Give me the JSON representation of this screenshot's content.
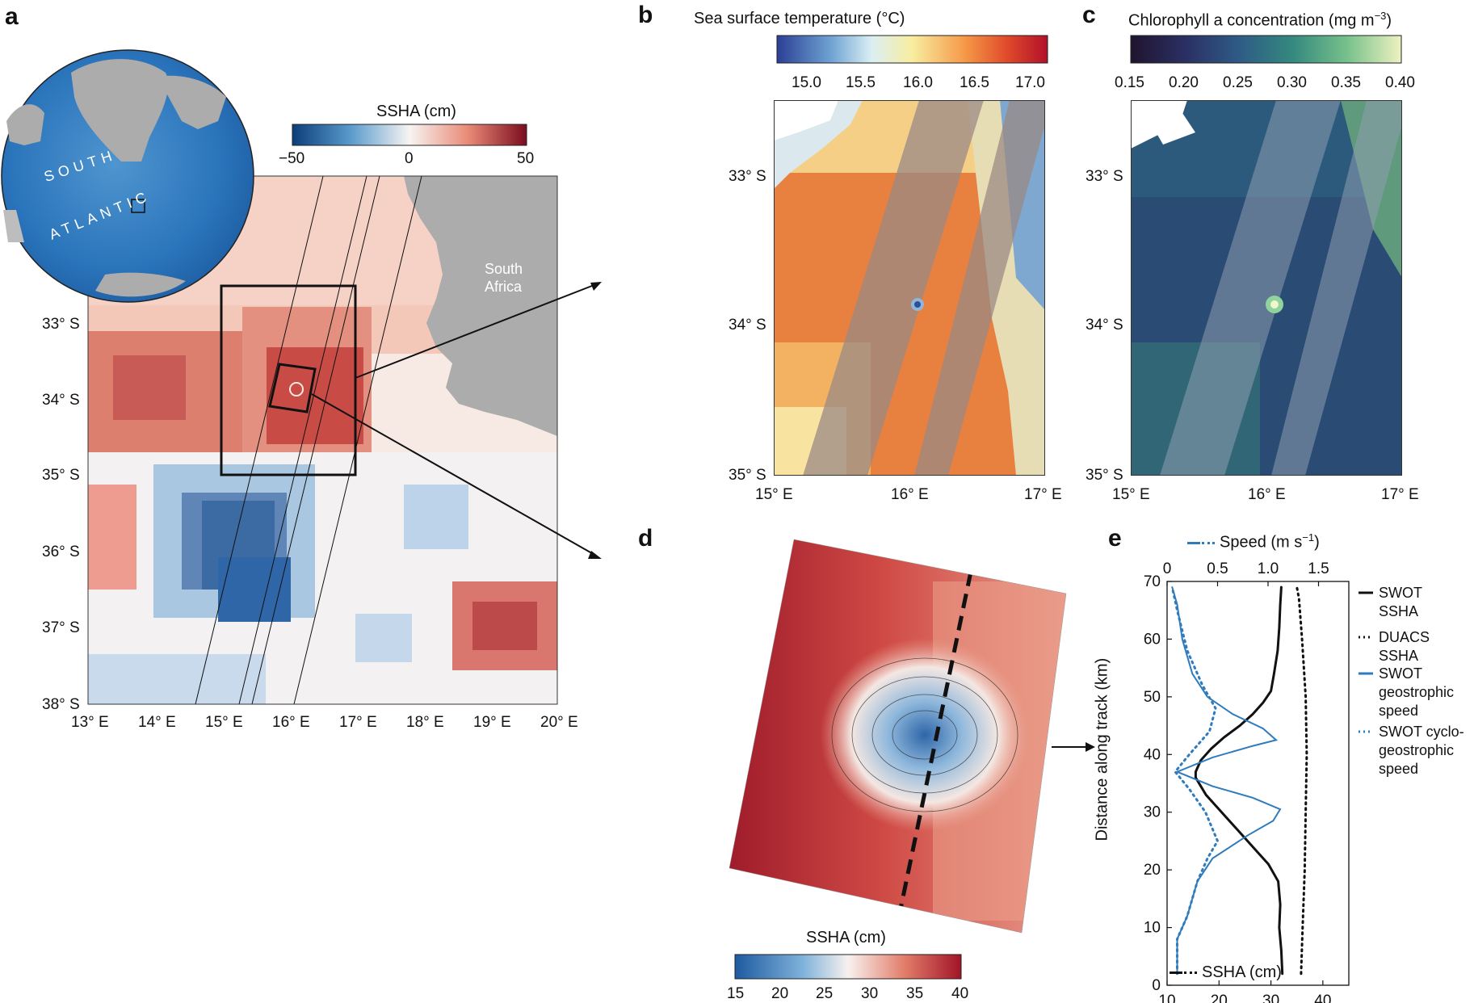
{
  "panel_letters": {
    "a": "a",
    "b": "b",
    "c": "c",
    "d": "d",
    "e": "e"
  },
  "panel_a": {
    "globe_label_1": "SOUTH",
    "globe_label_2": "ATLANTIC",
    "land_label_1": "South",
    "land_label_2": "Africa",
    "colorbar_title": "SSHA (cm)",
    "colorbar_ticks": [
      "−50",
      "0",
      "50"
    ],
    "lat_ticks": [
      "33° S",
      "34° S",
      "35° S",
      "36° S",
      "37° S",
      "38° S"
    ],
    "lon_ticks": [
      "13° E",
      "14° E",
      "15° E",
      "16° E",
      "17° E",
      "18° E",
      "19° E",
      "20° E"
    ]
  },
  "panel_b": {
    "colorbar_title": "Sea surface temperature (°C)",
    "colorbar_ticks": [
      "15.0",
      "15.5",
      "16.0",
      "16.5",
      "17.0"
    ],
    "lat_ticks": [
      "33° S",
      "34° S",
      "35° S"
    ],
    "lon_ticks": [
      "15° E",
      "16° E",
      "17° E"
    ]
  },
  "panel_c": {
    "colorbar_title": "Chlorophyll a concentration (mg m",
    "colorbar_title_sup": "−3",
    "colorbar_title_end": ")",
    "colorbar_ticks": [
      "0.15",
      "0.20",
      "0.25",
      "0.30",
      "0.35",
      "0.40"
    ],
    "lat_ticks": [
      "33° S",
      "34° S",
      "35° S"
    ],
    "lon_ticks": [
      "15° E",
      "16° E",
      "17° E"
    ]
  },
  "panel_d": {
    "colorbar_title": "SSHA (cm)",
    "colorbar_ticks": [
      "15",
      "20",
      "25",
      "30",
      "35",
      "40"
    ]
  },
  "colors": {
    "ssha_neg": "#2b5d9e",
    "ssha_pos": "#b4202e",
    "land": "#acacac",
    "swot_line": "#111111",
    "speed_line": "#2e7bbd"
  },
  "chart_data": {
    "type": "line",
    "top_axis_label": "Speed (m s",
    "top_axis_label_sup": "−1",
    "top_axis_label_end": ")",
    "bottom_axis_label": "SSHA (cm)",
    "ylabel": "Distance along track (km)",
    "speed_ticks": [
      "0",
      "0.5",
      "1.0",
      "1.5"
    ],
    "ssha_ticks": [
      "10",
      "20",
      "30",
      "40"
    ],
    "y_ticks": [
      "0",
      "10",
      "20",
      "30",
      "40",
      "50",
      "60",
      "70"
    ],
    "speed_lim": [
      0,
      1.8
    ],
    "ssha_lim": [
      10,
      45
    ],
    "ylim": [
      0,
      70
    ],
    "legend": [
      {
        "label_lines": [
          "SWOT",
          "SSHA"
        ],
        "style": "solid-black"
      },
      {
        "label_lines": [
          "DUACS",
          "SSHA"
        ],
        "style": "dotted-black"
      },
      {
        "label_lines": [
          "SWOT",
          "geostrophic",
          "speed"
        ],
        "style": "solid-blue"
      },
      {
        "label_lines": [
          "SWOT cyclo-",
          "geostrophic",
          "speed"
        ],
        "style": "dotted-blue"
      }
    ],
    "series": [
      {
        "name": "SWOT SSHA",
        "axis": "ssha",
        "points": [
          [
            32.2,
            2
          ],
          [
            32.0,
            6
          ],
          [
            31.6,
            10
          ],
          [
            31.8,
            14
          ],
          [
            31.4,
            18
          ],
          [
            29.5,
            21
          ],
          [
            27.5,
            23
          ],
          [
            25.5,
            25
          ],
          [
            23.5,
            27
          ],
          [
            21.5,
            29
          ],
          [
            19.5,
            31
          ],
          [
            17.5,
            33
          ],
          [
            15.5,
            36
          ],
          [
            15.5,
            37
          ],
          [
            16.5,
            39
          ],
          [
            18.5,
            41
          ],
          [
            21,
            43
          ],
          [
            24,
            45
          ],
          [
            26.5,
            47
          ],
          [
            28.5,
            49
          ],
          [
            30,
            51
          ],
          [
            30.6,
            54
          ],
          [
            31.3,
            58
          ],
          [
            31.6,
            62
          ],
          [
            31.8,
            66
          ],
          [
            32.0,
            69
          ]
        ]
      },
      {
        "name": "DUACS SSHA",
        "axis": "ssha",
        "points": [
          [
            35.8,
            2
          ],
          [
            36.1,
            10
          ],
          [
            36.5,
            20
          ],
          [
            36.7,
            30
          ],
          [
            36.9,
            40
          ],
          [
            36.7,
            50
          ],
          [
            36.0,
            60
          ],
          [
            35.4,
            67
          ],
          [
            35.0,
            69
          ]
        ]
      },
      {
        "name": "SWOT geostrophic speed",
        "axis": "speed",
        "points": [
          [
            0.1,
            2
          ],
          [
            0.1,
            8
          ],
          [
            0.2,
            12
          ],
          [
            0.3,
            18
          ],
          [
            0.45,
            22
          ],
          [
            0.8,
            26
          ],
          [
            1.05,
            28.5
          ],
          [
            1.12,
            30.5
          ],
          [
            0.85,
            32.5
          ],
          [
            0.45,
            34.5
          ],
          [
            0.1,
            37
          ],
          [
            0.45,
            39.5
          ],
          [
            0.85,
            41.5
          ],
          [
            1.08,
            42.5
          ],
          [
            0.95,
            44.5
          ],
          [
            0.65,
            47
          ],
          [
            0.4,
            50
          ],
          [
            0.25,
            54
          ],
          [
            0.15,
            60
          ],
          [
            0.1,
            66
          ],
          [
            0.05,
            69
          ]
        ]
      },
      {
        "name": "SWOT cyclo-geostrophic speed",
        "axis": "speed",
        "points": [
          [
            0.1,
            2
          ],
          [
            0.1,
            8
          ],
          [
            0.2,
            12
          ],
          [
            0.3,
            18
          ],
          [
            0.4,
            22
          ],
          [
            0.5,
            25
          ],
          [
            0.38,
            30
          ],
          [
            0.22,
            34
          ],
          [
            0.08,
            37
          ],
          [
            0.22,
            40
          ],
          [
            0.42,
            44
          ],
          [
            0.48,
            48
          ],
          [
            0.35,
            52
          ],
          [
            0.2,
            58
          ],
          [
            0.1,
            65
          ],
          [
            0.05,
            69
          ]
        ]
      }
    ]
  }
}
